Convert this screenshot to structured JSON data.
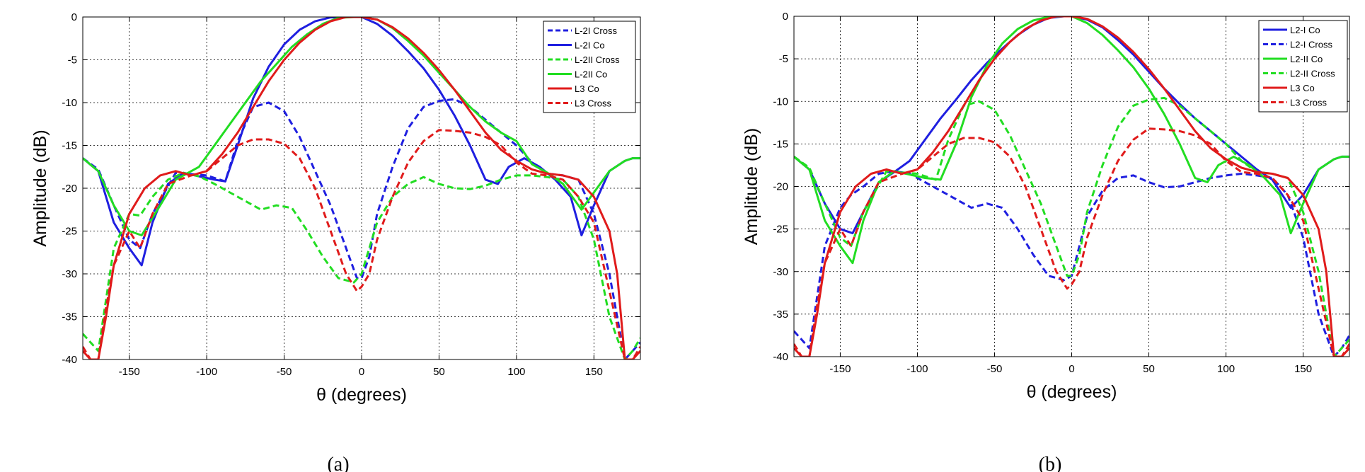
{
  "chart_data": [
    {
      "type": "line",
      "caption": "(a)",
      "xlabel": "θ (degrees)",
      "ylabel": "Amplitude (dB)",
      "xlim": [
        -180,
        180
      ],
      "ylim": [
        -40,
        0
      ],
      "xticks": [
        -150,
        -100,
        -50,
        0,
        50,
        100,
        150
      ],
      "yticks": [
        0,
        -5,
        -10,
        -15,
        -20,
        -25,
        -30,
        -35,
        -40
      ],
      "grid": true,
      "legend_position": "top-right",
      "series": [
        {
          "name": "L-2I Cross",
          "color": "#1f1fe0",
          "dash": true,
          "x": [
            -180,
            -170,
            -160,
            -150,
            -143,
            -135,
            -120,
            -100,
            -88,
            -80,
            -70,
            -60,
            -50,
            -40,
            -30,
            -20,
            -10,
            -3,
            0,
            5,
            10,
            20,
            30,
            40,
            50,
            60,
            70,
            80,
            90,
            100,
            110,
            120,
            130,
            140,
            150,
            160,
            170,
            175,
            180
          ],
          "y": [
            -16.5,
            -17.8,
            -22,
            -26,
            -27,
            -23,
            -18.2,
            -18.5,
            -19.2,
            -14.5,
            -10.5,
            -10,
            -11,
            -14,
            -18,
            -22,
            -27,
            -30.5,
            -30.5,
            -28,
            -23,
            -17.5,
            -13,
            -10.5,
            -9.8,
            -9.6,
            -10.5,
            -12,
            -13.5,
            -15,
            -17,
            -18.3,
            -18.5,
            -19,
            -23,
            -30,
            -40,
            -39,
            -38
          ]
        },
        {
          "name": "L-2I Co",
          "color": "#1f1fe0",
          "dash": false,
          "x": [
            -180,
            -170,
            -160,
            -150,
            -142,
            -135,
            -125,
            -115,
            -105,
            -95,
            -88,
            -80,
            -70,
            -60,
            -50,
            -40,
            -30,
            -20,
            -10,
            0,
            10,
            20,
            30,
            40,
            50,
            60,
            70,
            80,
            88,
            95,
            105,
            115,
            125,
            135,
            142,
            150,
            160,
            170,
            175,
            180
          ],
          "y": [
            -16.5,
            -18,
            -24,
            -27,
            -29,
            -24,
            -19.5,
            -18.2,
            -18.6,
            -19,
            -19.2,
            -15,
            -9.5,
            -5.8,
            -3.2,
            -1.5,
            -0.5,
            -0.05,
            0,
            0,
            -0.8,
            -2.2,
            -4,
            -6,
            -8.5,
            -11.5,
            -15,
            -19,
            -19.5,
            -17.5,
            -16.5,
            -17.5,
            -19,
            -21,
            -25.5,
            -22,
            -18,
            -16.8,
            -16.5,
            -16.5
          ]
        },
        {
          "name": "L-2II Cross",
          "color": "#22dd22",
          "dash": true,
          "x": [
            -180,
            -170,
            -160,
            -150,
            -143,
            -135,
            -125,
            -115,
            -105,
            -95,
            -85,
            -75,
            -65,
            -55,
            -45,
            -35,
            -25,
            -15,
            -5,
            0,
            5,
            10,
            20,
            30,
            40,
            50,
            60,
            70,
            80,
            90,
            100,
            110,
            120,
            130,
            140,
            150,
            160,
            170,
            175,
            180
          ],
          "y": [
            -37,
            -39,
            -27,
            -23,
            -23.2,
            -21,
            -19,
            -18.2,
            -18.6,
            -19.5,
            -20.5,
            -21.5,
            -22.5,
            -22,
            -22.3,
            -25,
            -28,
            -30.5,
            -31,
            -30,
            -27,
            -24,
            -21,
            -19.5,
            -18.7,
            -19.5,
            -20,
            -20.1,
            -19.7,
            -19,
            -18.5,
            -18.5,
            -18.7,
            -19,
            -21,
            -26,
            -35,
            -40,
            -39,
            -37.5
          ]
        },
        {
          "name": "L-2II Co",
          "color": "#22dd22",
          "dash": false,
          "x": [
            -180,
            -170,
            -160,
            -150,
            -142,
            -130,
            -120,
            -105,
            -95,
            -85,
            -75,
            -65,
            -55,
            -45,
            -35,
            -25,
            -15,
            -5,
            0,
            10,
            20,
            30,
            40,
            50,
            60,
            70,
            80,
            90,
            100,
            110,
            120,
            130,
            142,
            150,
            160,
            170,
            175,
            180
          ],
          "y": [
            -16.5,
            -18,
            -22,
            -25,
            -25.5,
            -22,
            -19,
            -17.5,
            -15,
            -12.5,
            -10,
            -7.5,
            -5.5,
            -3.5,
            -2,
            -0.8,
            -0.1,
            0,
            0,
            -0.3,
            -1.3,
            -2.8,
            -4.5,
            -6.5,
            -8.5,
            -10.5,
            -12.2,
            -13.5,
            -14.5,
            -17.2,
            -18.2,
            -19.5,
            -22.5,
            -20.5,
            -18,
            -16.8,
            -16.5,
            -16.5
          ]
        },
        {
          "name": "L3 Co",
          "color": "#e01b1b",
          "dash": false,
          "x": [
            -180,
            -175,
            -170,
            -165,
            -160,
            -150,
            -140,
            -130,
            -120,
            -110,
            -100,
            -90,
            -80,
            -70,
            -60,
            -50,
            -40,
            -30,
            -20,
            -10,
            0,
            10,
            20,
            30,
            40,
            50,
            60,
            70,
            80,
            90,
            100,
            110,
            120,
            130,
            140,
            150,
            160,
            165,
            170,
            175,
            180
          ],
          "y": [
            -39,
            -40,
            -40,
            -35,
            -29,
            -23,
            -20,
            -18.5,
            -18,
            -18.5,
            -18,
            -16,
            -13.5,
            -10.5,
            -7.5,
            -5,
            -3,
            -1.5,
            -0.5,
            0,
            0,
            -0.3,
            -1.2,
            -2.5,
            -4.2,
            -6.2,
            -8.5,
            -11,
            -13.5,
            -15.5,
            -16.8,
            -17.8,
            -18.3,
            -18.5,
            -19,
            -21,
            -25,
            -30,
            -40,
            -40,
            -39
          ]
        },
        {
          "name": "L3 Cross",
          "color": "#e01b1b",
          "dash": true,
          "x": [
            -180,
            -175,
            -170,
            -165,
            -160,
            -150,
            -143,
            -135,
            -125,
            -110,
            -100,
            -90,
            -80,
            -70,
            -60,
            -50,
            -40,
            -30,
            -20,
            -10,
            -3,
            0,
            5,
            10,
            20,
            30,
            40,
            50,
            60,
            70,
            80,
            90,
            100,
            110,
            120,
            130,
            140,
            150,
            160,
            170,
            175,
            180
          ],
          "y": [
            -38.5,
            -40,
            -40,
            -34,
            -29,
            -25,
            -27,
            -23,
            -19.5,
            -18.5,
            -18,
            -16.5,
            -15,
            -14.3,
            -14.3,
            -14.8,
            -16.5,
            -20,
            -25,
            -30,
            -32,
            -31.5,
            -30,
            -26,
            -21,
            -17,
            -14.5,
            -13.2,
            -13.3,
            -13.5,
            -14,
            -15,
            -17,
            -18.3,
            -18.5,
            -19,
            -21,
            -24,
            -32,
            -40,
            -40,
            -38.5
          ]
        }
      ]
    },
    {
      "type": "line",
      "caption": "(b)",
      "xlabel": "θ (degrees)",
      "ylabel": "Amplitude (dB)",
      "xlim": [
        -180,
        180
      ],
      "ylim": [
        -40,
        0
      ],
      "xticks": [
        -150,
        -100,
        -50,
        0,
        50,
        100,
        150
      ],
      "yticks": [
        0,
        -5,
        -10,
        -15,
        -20,
        -25,
        -30,
        -35,
        -40
      ],
      "grid": true,
      "legend_position": "top-right",
      "series": [
        {
          "name": "L2-I Co",
          "color": "#1f1fe0",
          "dash": false,
          "x": [
            -180,
            -170,
            -160,
            -150,
            -142,
            -135,
            -125,
            -115,
            -105,
            -95,
            -85,
            -75,
            -65,
            -55,
            -45,
            -35,
            -25,
            -15,
            -5,
            0,
            10,
            20,
            30,
            40,
            50,
            60,
            70,
            80,
            90,
            100,
            110,
            120,
            130,
            142,
            150,
            160,
            170,
            175,
            180
          ],
          "y": [
            -16.5,
            -18,
            -22,
            -25,
            -25.5,
            -23,
            -19.5,
            -18.3,
            -17,
            -14.5,
            -12,
            -9.8,
            -7.5,
            -5.5,
            -3.8,
            -2.2,
            -1,
            -0.2,
            0,
            0,
            -0.4,
            -1.3,
            -2.8,
            -4.5,
            -6.5,
            -8.5,
            -10.3,
            -12,
            -13.5,
            -15,
            -16.5,
            -18,
            -19.2,
            -22.5,
            -21,
            -18,
            -16.8,
            -16.5,
            -16.5
          ]
        },
        {
          "name": "L2-I Cross",
          "color": "#1f1fe0",
          "dash": true,
          "x": [
            -180,
            -170,
            -160,
            -150,
            -143,
            -135,
            -125,
            -115,
            -105,
            -95,
            -85,
            -75,
            -65,
            -55,
            -45,
            -35,
            -25,
            -15,
            -5,
            0,
            5,
            10,
            20,
            30,
            40,
            50,
            60,
            70,
            80,
            90,
            100,
            110,
            120,
            130,
            140,
            150,
            160,
            170,
            175,
            180
          ],
          "y": [
            -37,
            -39,
            -27,
            -22.5,
            -21,
            -20,
            -18.5,
            -18.2,
            -18.5,
            -19.5,
            -20.5,
            -21.5,
            -22.5,
            -22,
            -22.5,
            -25,
            -28,
            -30.5,
            -31,
            -30.5,
            -27,
            -23.5,
            -20.5,
            -19,
            -18.7,
            -19.5,
            -20.1,
            -20,
            -19.5,
            -19,
            -18.7,
            -18.5,
            -18.7,
            -19,
            -21,
            -26,
            -35,
            -40,
            -39,
            -37.5
          ]
        },
        {
          "name": "L2-II Co",
          "color": "#22dd22",
          "dash": false,
          "x": [
            -180,
            -170,
            -160,
            -150,
            -142,
            -135,
            -125,
            -115,
            -105,
            -95,
            -85,
            -75,
            -65,
            -55,
            -45,
            -35,
            -25,
            -15,
            -5,
            0,
            10,
            20,
            30,
            40,
            50,
            60,
            70,
            80,
            88,
            95,
            105,
            115,
            125,
            135,
            142,
            150,
            160,
            170,
            175,
            180
          ],
          "y": [
            -16.5,
            -18,
            -24,
            -27,
            -29,
            -24,
            -19.5,
            -18.2,
            -18.6,
            -19,
            -19.2,
            -15,
            -9.5,
            -5.8,
            -3.2,
            -1.5,
            -0.5,
            -0.05,
            0,
            0,
            -0.8,
            -2.2,
            -4,
            -6,
            -8.5,
            -11.5,
            -15,
            -19,
            -19.5,
            -17.5,
            -16.5,
            -17.5,
            -19,
            -21,
            -25.5,
            -22,
            -18,
            -16.8,
            -16.5,
            -16.5
          ]
        },
        {
          "name": "L2-II Cross",
          "color": "#22dd22",
          "dash": true,
          "x": [
            -180,
            -170,
            -160,
            -150,
            -143,
            -135,
            -120,
            -100,
            -88,
            -80,
            -70,
            -60,
            -50,
            -40,
            -30,
            -20,
            -10,
            -3,
            0,
            5,
            10,
            20,
            30,
            40,
            50,
            60,
            70,
            80,
            90,
            100,
            110,
            120,
            130,
            140,
            150,
            160,
            170,
            175,
            180
          ],
          "y": [
            -16.5,
            -17.8,
            -22,
            -26,
            -27,
            -23,
            -18.2,
            -18.5,
            -19.2,
            -14.5,
            -10.5,
            -10,
            -11,
            -14,
            -18,
            -22,
            -27,
            -30.5,
            -30.5,
            -28,
            -23,
            -17.5,
            -13,
            -10.5,
            -9.8,
            -9.6,
            -10.5,
            -12,
            -13.5,
            -15,
            -17,
            -18.3,
            -18.5,
            -19,
            -23,
            -30,
            -40,
            -39,
            -38
          ]
        },
        {
          "name": "L3 Co",
          "color": "#e01b1b",
          "dash": false,
          "x": [
            -180,
            -175,
            -170,
            -165,
            -160,
            -150,
            -140,
            -130,
            -120,
            -110,
            -100,
            -90,
            -80,
            -70,
            -60,
            -50,
            -40,
            -30,
            -20,
            -10,
            0,
            10,
            20,
            30,
            40,
            50,
            60,
            70,
            80,
            90,
            100,
            110,
            120,
            130,
            140,
            150,
            160,
            165,
            170,
            175,
            180
          ],
          "y": [
            -39,
            -40,
            -40,
            -35,
            -29,
            -23,
            -20,
            -18.5,
            -18,
            -18.5,
            -18,
            -16,
            -13.5,
            -10.5,
            -7.5,
            -5,
            -3,
            -1.5,
            -0.5,
            0,
            0,
            -0.3,
            -1.2,
            -2.5,
            -4.2,
            -6.2,
            -8.5,
            -11,
            -13.5,
            -15.5,
            -16.8,
            -17.8,
            -18.3,
            -18.5,
            -19,
            -21,
            -25,
            -30,
            -40,
            -40,
            -39
          ]
        },
        {
          "name": "L3 Cross",
          "color": "#e01b1b",
          "dash": true,
          "x": [
            -180,
            -175,
            -170,
            -165,
            -160,
            -150,
            -143,
            -135,
            -125,
            -110,
            -100,
            -90,
            -80,
            -70,
            -60,
            -50,
            -40,
            -30,
            -20,
            -10,
            -3,
            0,
            5,
            10,
            20,
            30,
            40,
            50,
            60,
            70,
            80,
            90,
            100,
            110,
            120,
            130,
            140,
            150,
            160,
            170,
            175,
            180
          ],
          "y": [
            -38.5,
            -40,
            -40,
            -34,
            -29,
            -25,
            -27,
            -23,
            -19.5,
            -18.5,
            -18,
            -16.5,
            -15,
            -14.3,
            -14.3,
            -14.8,
            -16.5,
            -20,
            -25,
            -30,
            -32,
            -31.5,
            -30,
            -26,
            -21,
            -17,
            -14.5,
            -13.2,
            -13.3,
            -13.5,
            -14,
            -15,
            -17,
            -18.3,
            -18.5,
            -19,
            -21,
            -24,
            -32,
            -40,
            -40,
            -38.5
          ]
        }
      ]
    }
  ]
}
